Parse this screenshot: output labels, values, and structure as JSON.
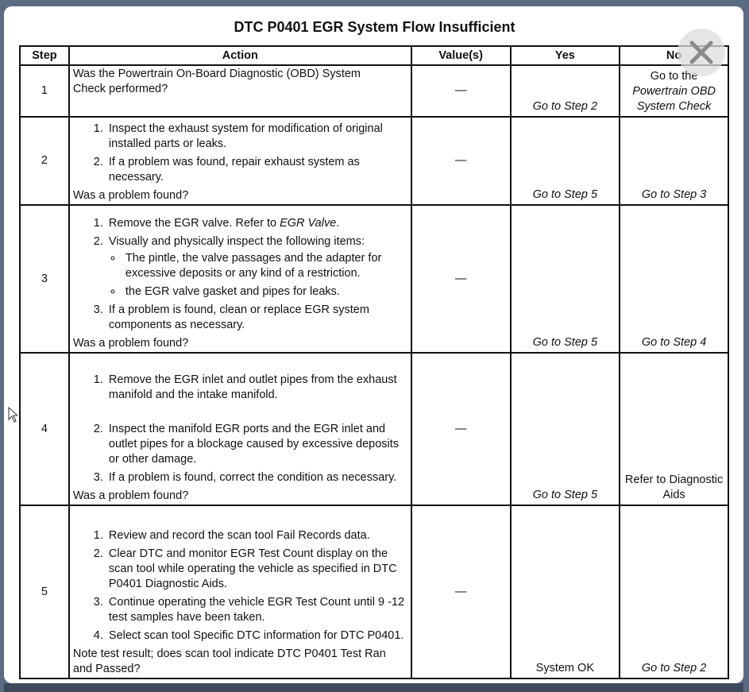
{
  "title": "DTC P0401 EGR System Flow Insufficient",
  "headers": {
    "step": "Step",
    "action": "Action",
    "values": "Value(s)",
    "yes": "Yes",
    "no": "No"
  },
  "rows": [
    {
      "step": "1",
      "question": "Was the Powertrain On-Board Diagnostic (OBD) System Check performed?",
      "value": "—",
      "yes": "Go to Step 2",
      "no_prefix": "Go to the",
      "no": "Powertrain OBD System Check"
    },
    {
      "step": "2",
      "items": [
        "Inspect the exhaust system for modification of original installed parts or leaks.",
        "If a problem was found, repair exhaust system as necessary."
      ],
      "question": "Was a problem found?",
      "value": "—",
      "yes": "Go to Step 5",
      "no": "Go to Step 3"
    },
    {
      "step": "3",
      "item1_prefix": "Remove the EGR valve. Refer to ",
      "item1_link": "EGR Valve",
      "item1_suffix": ".",
      "item2": "Visually and physically inspect the following items:",
      "bullets": [
        "The pintle, the valve passages and the adapter for excessive deposits or any kind of a restriction.",
        "the EGR valve gasket and pipes for leaks."
      ],
      "item3": "If a problem is found, clean or replace EGR system components as necessary.",
      "question": "Was a problem found?",
      "value": "—",
      "yes": "Go to Step 5",
      "no": "Go to Step 4"
    },
    {
      "step": "4",
      "items": [
        "Remove the EGR inlet and outlet pipes from the exhaust manifold and the intake manifold.",
        "Inspect the manifold EGR ports and the EGR inlet and outlet pipes for a blockage caused by excessive deposits or other damage.",
        "If a problem is found, correct the condition as necessary."
      ],
      "question": "Was a problem found?",
      "value": "—",
      "yes": "Go to Step 5",
      "no": "Refer to Diagnostic Aids"
    },
    {
      "step": "5",
      "items": [
        "Review and record the scan tool Fail Records data.",
        "Clear DTC and monitor EGR Test Count display on the scan tool while operating the vehicle as specified in DTC P0401 Diagnostic Aids.",
        "Continue operating the vehicle EGR Test Count until 9 -12 test samples have been taken.",
        "Select scan tool Specific DTC information for DTC P0401."
      ],
      "question": "Note test result; does scan tool indicate DTC P0401 Test Ran and Passed?",
      "value": "—",
      "yes": "System OK",
      "no": "Go to Step 2"
    }
  ]
}
